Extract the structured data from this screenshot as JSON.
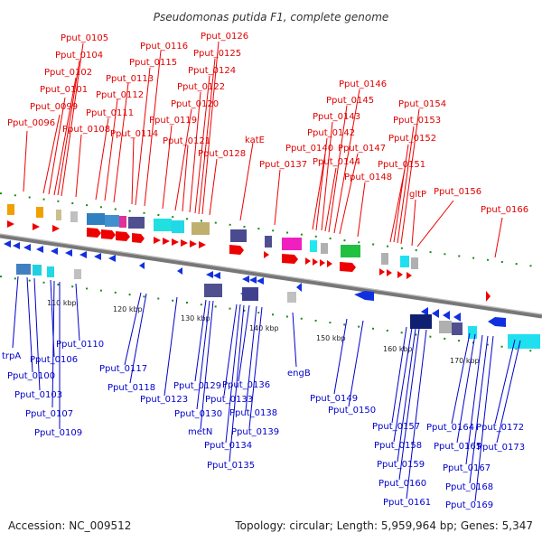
{
  "title": "Pseudomonas putida F1, complete genome",
  "footer": {
    "accession": "Accession: NC_009512",
    "info": "Topology: circular; Length: 5,959,964 bp; Genes: 5,347"
  },
  "colors": {
    "forward_label": "#e00000",
    "reverse_label": "#0000cc",
    "backbone": "#888888",
    "tick": "#1a8a1a"
  },
  "kbp_ticks": [
    "110 kbp",
    "120 kbp",
    "130 kbp",
    "140 kbp",
    "150 kbp",
    "160 kbp",
    "170 kbp"
  ],
  "forward_genes": [
    "Pput_0096",
    "Pput_0099",
    "Pput_0101",
    "Pput_0102",
    "Pput_0104",
    "Pput_0105",
    "Pput_0108",
    "Pput_0111",
    "Pput_0112",
    "Pput_0113",
    "Pput_0114",
    "Pput_0115",
    "Pput_0116",
    "Pput_0119",
    "Pput_0120",
    "Pput_0121",
    "Pput_0122",
    "Pput_0124",
    "Pput_0125",
    "Pput_0126",
    "Pput_0128",
    "katE",
    "Pput_0137",
    "Pput_0140",
    "Pput_0142",
    "Pput_0143",
    "Pput_0144",
    "Pput_0145",
    "Pput_0146",
    "Pput_0147",
    "Pput_0148",
    "Pput_0151",
    "Pput_0152",
    "Pput_0153",
    "Pput_0154",
    "gltP",
    "Pput_0156",
    "Pput_0166"
  ],
  "reverse_genes": [
    "trpA",
    "Pput_0100",
    "Pput_0103",
    "Pput_0106",
    "Pput_0107",
    "Pput_0109",
    "Pput_0110",
    "Pput_0117",
    "Pput_0118",
    "Pput_0123",
    "Pput_0129",
    "Pput_0130",
    "metN",
    "Pput_0133",
    "Pput_0134",
    "Pput_0135",
    "Pput_0136",
    "Pput_0138",
    "Pput_0139",
    "engB",
    "Pput_0149",
    "Pput_0150",
    "Pput_0157",
    "Pput_0158",
    "Pput_0159",
    "Pput_0160",
    "Pput_0161",
    "Pput_0164",
    "Pput_0165",
    "Pput_0167",
    "Pput_0168",
    "Pput_0169",
    "Pput_0172",
    "Pput_0173"
  ]
}
